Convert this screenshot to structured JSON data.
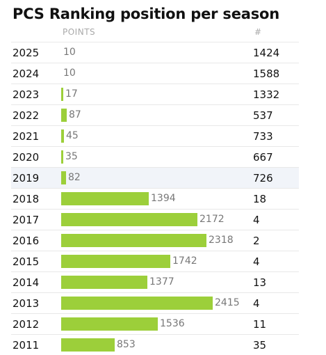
{
  "title": "PCS Ranking position per season",
  "headers": {
    "points": "POINTS",
    "rank": "#"
  },
  "colors": {
    "bar": "#9ccf3a",
    "highlight_row": "#f1f4f9"
  },
  "highlight_year": "2019",
  "rows": [
    {
      "year": "2025",
      "points": 10,
      "rank": "1424"
    },
    {
      "year": "2024",
      "points": 10,
      "rank": "1588"
    },
    {
      "year": "2023",
      "points": 17,
      "rank": "1332"
    },
    {
      "year": "2022",
      "points": 87,
      "rank": "537"
    },
    {
      "year": "2021",
      "points": 45,
      "rank": "733"
    },
    {
      "year": "2020",
      "points": 35,
      "rank": "667"
    },
    {
      "year": "2019",
      "points": 82,
      "rank": "726"
    },
    {
      "year": "2018",
      "points": 1394,
      "rank": "18"
    },
    {
      "year": "2017",
      "points": 2172,
      "rank": "4"
    },
    {
      "year": "2016",
      "points": 2318,
      "rank": "2"
    },
    {
      "year": "2015",
      "points": 1742,
      "rank": "4"
    },
    {
      "year": "2014",
      "points": 1377,
      "rank": "13"
    },
    {
      "year": "2013",
      "points": 2415,
      "rank": "4"
    },
    {
      "year": "2012",
      "points": 1536,
      "rank": "11"
    },
    {
      "year": "2011",
      "points": 853,
      "rank": "35"
    }
  ]
}
